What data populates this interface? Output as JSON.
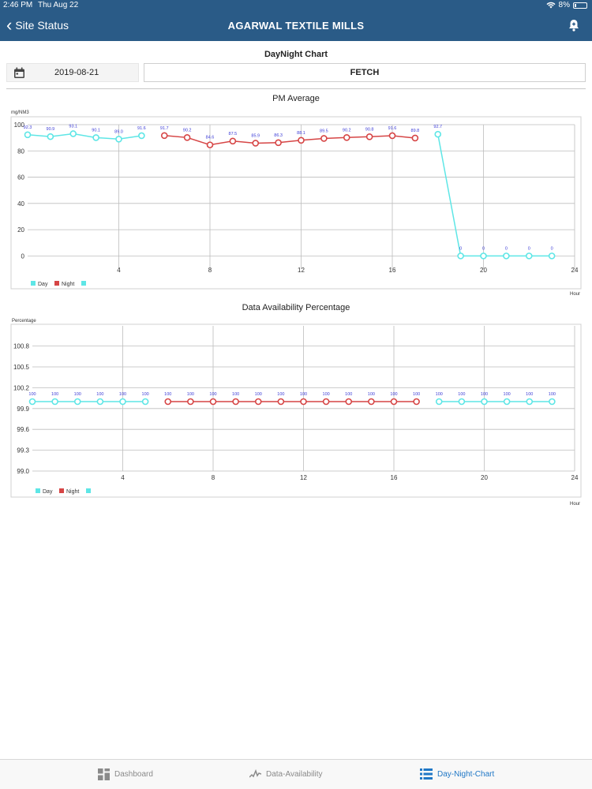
{
  "status": {
    "time": "2:46 PM",
    "date": "Thu Aug 22",
    "battery": "8%"
  },
  "nav": {
    "back_label": "Site Status",
    "title": "AGARWAL TEXTILE MILLS"
  },
  "page": {
    "subtitle": "DayNight Chart",
    "date_value": "2019-08-21",
    "fetch_label": "FETCH"
  },
  "colors": {
    "header": "#2a5b87",
    "day": "#5ee6e6",
    "night": "#d64545",
    "label": "#3b3bd6",
    "tab_active": "#1f77c6"
  },
  "chart1": {
    "title": "PM Average",
    "ylabel": "mg/NM3",
    "xlabel": "Hour",
    "legend": {
      "day": "Day",
      "night": "Night"
    }
  },
  "chart2": {
    "title": "Data Availability Percentage",
    "ylabel": "Percentage",
    "xlabel": "Hour",
    "legend": {
      "day": "Day",
      "night": "Night"
    }
  },
  "chart_data": [
    {
      "type": "line",
      "title": "PM Average",
      "ylabel": "mg/NM3",
      "xlabel": "Hour",
      "xlim": [
        0,
        24
      ],
      "ylim": [
        -10,
        100
      ],
      "xticks": [
        4,
        8,
        12,
        16,
        20,
        24
      ],
      "yticks": [
        0,
        20,
        40,
        60,
        80,
        100
      ],
      "grid": true,
      "legend": "bottom-left",
      "series": [
        {
          "name": "Day",
          "color": "#5ee6e6",
          "x": [
            0,
            1,
            2,
            3,
            4,
            5
          ],
          "y": [
            92.3,
            90.9,
            93.1,
            90.1,
            89.0,
            91.6
          ],
          "labels": [
            "92.3",
            "90.9",
            "93.1",
            "90.1",
            "89.0",
            "91.6"
          ]
        },
        {
          "name": "Night",
          "color": "#d64545",
          "x": [
            6,
            7,
            8,
            9,
            10,
            11,
            12,
            13,
            14,
            15,
            16,
            17
          ],
          "y": [
            91.7,
            90.2,
            84.6,
            87.5,
            85.9,
            86.3,
            88.1,
            89.5,
            90.2,
            90.8,
            91.6,
            89.8
          ],
          "labels": [
            "91.7",
            "90.2",
            "84.6",
            "87.5",
            "85.9",
            "86.3",
            "88.1",
            "89.5",
            "90.2",
            "90.8",
            "91.6",
            "89.8"
          ]
        },
        {
          "name": "Day",
          "color": "#5ee6e6",
          "x": [
            18,
            19,
            20,
            21,
            22,
            23
          ],
          "y": [
            92.7,
            0,
            0,
            0,
            0,
            0
          ],
          "labels": [
            "92.7",
            "0",
            "0",
            "0",
            "0",
            "0"
          ]
        }
      ]
    },
    {
      "type": "line",
      "title": "Data Availability Percentage",
      "ylabel": "Percentage",
      "xlabel": "Hour",
      "xlim": [
        0,
        24
      ],
      "ylim": [
        99.0,
        101.0
      ],
      "xticks": [
        4,
        8,
        12,
        16,
        20,
        24
      ],
      "yticks": [
        99.0,
        99.3,
        99.6,
        99.9,
        100.2,
        100.5,
        100.8
      ],
      "ytick_labels": [
        "99.0",
        "99.3",
        "99.6",
        "99.9",
        "100.2",
        "100.5",
        "100.8"
      ],
      "grid": true,
      "legend": "bottom-left",
      "series": [
        {
          "name": "Day",
          "color": "#5ee6e6",
          "x": [
            0,
            1,
            2,
            3,
            4,
            5
          ],
          "y": [
            100,
            100,
            100,
            100,
            100,
            100
          ],
          "labels": [
            "100",
            "100",
            "100",
            "100",
            "100",
            "100"
          ]
        },
        {
          "name": "Night",
          "color": "#d64545",
          "x": [
            6,
            7,
            8,
            9,
            10,
            11,
            12,
            13,
            14,
            15,
            16,
            17
          ],
          "y": [
            100,
            100,
            100,
            100,
            100,
            100,
            100,
            100,
            100,
            100,
            100,
            100
          ],
          "labels": [
            "100",
            "100",
            "100",
            "100",
            "100",
            "100",
            "100",
            "100",
            "100",
            "100",
            "100",
            "100"
          ]
        },
        {
          "name": "Day",
          "color": "#5ee6e6",
          "x": [
            18,
            19,
            20,
            21,
            22,
            23
          ],
          "y": [
            100,
            100,
            100,
            100,
            100,
            100
          ],
          "labels": [
            "100",
            "100",
            "100",
            "100",
            "100",
            "100"
          ]
        }
      ]
    }
  ],
  "tabs": [
    {
      "label": "Dashboard",
      "icon": "dashboard-icon"
    },
    {
      "label": "Data-Availability",
      "icon": "activity-icon"
    },
    {
      "label": "Day-Night-Chart",
      "icon": "list-icon"
    }
  ]
}
